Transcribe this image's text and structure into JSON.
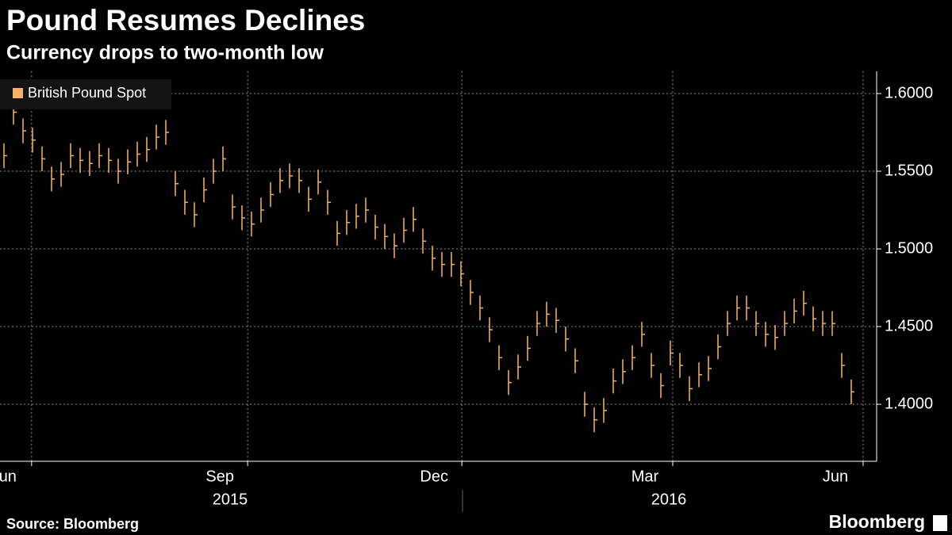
{
  "chart_data": {
    "type": "ohlc",
    "title": "Pound Resumes Declines",
    "subtitle": "Currency drops to two-month low",
    "source": "Source: Bloomberg",
    "brand": "Bloomberg",
    "years": [
      "2015",
      "2016"
    ],
    "series": [
      {
        "name": "British Pound Spot",
        "color": "#f7b267",
        "high": [
          1.568,
          1.596,
          1.584,
          1.578,
          1.566,
          1.553,
          1.556,
          1.568,
          1.565,
          1.563,
          1.568,
          1.565,
          1.558,
          1.564,
          1.569,
          1.572,
          1.58,
          1.583,
          1.55,
          1.538,
          1.53,
          1.546,
          1.558,
          1.566,
          1.535,
          1.528,
          1.524,
          1.533,
          1.543,
          1.552,
          1.555,
          1.552,
          1.54,
          1.551,
          1.538,
          1.518,
          1.525,
          1.529,
          1.533,
          1.522,
          1.516,
          1.51,
          1.52,
          1.527,
          1.513,
          1.502,
          1.498,
          1.498,
          1.492,
          1.48,
          1.47,
          1.456,
          1.438,
          1.422,
          1.432,
          1.444,
          1.46,
          1.466,
          1.462,
          1.45,
          1.436,
          1.408,
          1.398,
          1.404,
          1.423,
          1.429,
          1.438,
          1.453,
          1.433,
          1.42,
          1.441,
          1.433,
          1.418,
          1.427,
          1.431,
          1.445,
          1.46,
          1.47,
          1.47,
          1.46,
          1.453,
          1.451,
          1.46,
          1.468,
          1.473,
          1.463,
          1.46,
          1.46,
          1.433,
          1.416
        ],
        "low": [
          1.552,
          1.58,
          1.568,
          1.562,
          1.55,
          1.537,
          1.54,
          1.552,
          1.549,
          1.547,
          1.552,
          1.549,
          1.542,
          1.548,
          1.553,
          1.556,
          1.564,
          1.567,
          1.534,
          1.522,
          1.514,
          1.53,
          1.542,
          1.55,
          1.519,
          1.512,
          1.508,
          1.517,
          1.527,
          1.536,
          1.539,
          1.536,
          1.524,
          1.535,
          1.522,
          1.502,
          1.509,
          1.513,
          1.517,
          1.506,
          1.5,
          1.494,
          1.504,
          1.511,
          1.497,
          1.486,
          1.482,
          1.482,
          1.476,
          1.464,
          1.454,
          1.44,
          1.422,
          1.406,
          1.416,
          1.428,
          1.444,
          1.45,
          1.446,
          1.434,
          1.42,
          1.392,
          1.382,
          1.388,
          1.407,
          1.413,
          1.422,
          1.437,
          1.417,
          1.404,
          1.425,
          1.417,
          1.402,
          1.411,
          1.415,
          1.429,
          1.444,
          1.454,
          1.454,
          1.444,
          1.437,
          1.435,
          1.444,
          1.452,
          1.457,
          1.447,
          1.444,
          1.444,
          1.417,
          1.4
        ],
        "close": [
          1.56,
          1.588,
          1.576,
          1.57,
          1.558,
          1.545,
          1.548,
          1.56,
          1.557,
          1.555,
          1.56,
          1.557,
          1.55,
          1.556,
          1.561,
          1.564,
          1.572,
          1.575,
          1.542,
          1.53,
          1.522,
          1.538,
          1.55,
          1.558,
          1.527,
          1.52,
          1.516,
          1.525,
          1.535,
          1.544,
          1.547,
          1.544,
          1.532,
          1.543,
          1.53,
          1.51,
          1.517,
          1.521,
          1.525,
          1.514,
          1.508,
          1.502,
          1.512,
          1.519,
          1.505,
          1.494,
          1.49,
          1.49,
          1.484,
          1.472,
          1.462,
          1.448,
          1.43,
          1.414,
          1.424,
          1.436,
          1.452,
          1.458,
          1.454,
          1.442,
          1.428,
          1.4,
          1.39,
          1.396,
          1.415,
          1.421,
          1.43,
          1.445,
          1.425,
          1.412,
          1.433,
          1.425,
          1.41,
          1.419,
          1.423,
          1.437,
          1.452,
          1.462,
          1.462,
          1.452,
          1.445,
          1.443,
          1.452,
          1.46,
          1.465,
          1.455,
          1.452,
          1.452,
          1.425,
          1.408
        ]
      }
    ],
    "xlim": [
      0,
      91.67
    ],
    "xticks": [
      {
        "value": 2.9,
        "label": "Jun"
      },
      {
        "value": 25.6,
        "label": "Sep"
      },
      {
        "value": 48.1,
        "label": "Dec"
      },
      {
        "value": 70.25,
        "label": "Mar"
      },
      {
        "value": 90.25,
        "label": "Jun"
      }
    ],
    "ylim": [
      1.3633,
      1.6143
    ],
    "yticks": [
      {
        "value": 1.4,
        "label": "1.4000"
      },
      {
        "value": 1.45,
        "label": "1.4500"
      },
      {
        "value": 1.5,
        "label": "1.5000"
      },
      {
        "value": 1.55,
        "label": "1.5500"
      },
      {
        "value": 1.6,
        "label": "1.6000"
      }
    ],
    "grid": true
  }
}
